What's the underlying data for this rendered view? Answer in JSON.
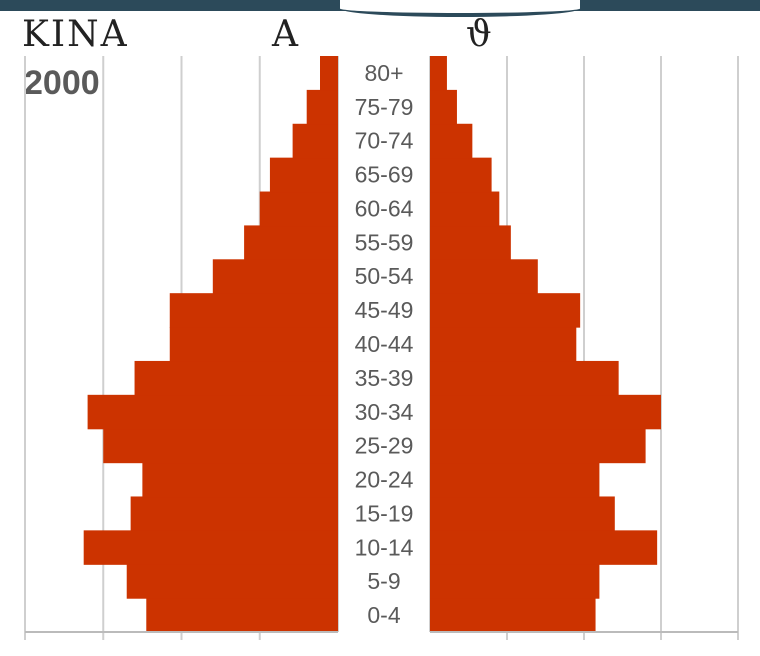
{
  "header": {
    "country": "KINA",
    "left_symbol": "A",
    "right_symbol": "ϑ",
    "year": "2000"
  },
  "colors": {
    "bar": "#cc3300",
    "grid": "#cfcfcf",
    "axis": "#bbbbbb",
    "label": "#5a5a5a",
    "topbar": "#2c4a5a"
  },
  "chart_data": {
    "type": "bar",
    "orientation": "horizontal",
    "layout": "population-pyramid",
    "categories": [
      "0-4",
      "5-9",
      "10-14",
      "15-19",
      "20-24",
      "25-29",
      "30-34",
      "35-39",
      "40-44",
      "45-49",
      "50-54",
      "55-59",
      "60-64",
      "65-69",
      "70-74",
      "75-79",
      "80+"
    ],
    "series": [
      {
        "side": "left",
        "values": [
          24.5,
          27,
          32.5,
          26.5,
          25,
          30,
          32,
          26,
          21.5,
          21.5,
          16,
          12,
          10,
          8.7,
          5.8,
          4,
          2.3
        ]
      },
      {
        "side": "right",
        "values": [
          21.5,
          22,
          29.5,
          24,
          22,
          28,
          30,
          24.5,
          19,
          19.5,
          14,
          10.5,
          9,
          8,
          5.5,
          3.5,
          2.2
        ]
      }
    ],
    "xlim": [
      0,
      40
    ],
    "gridlines": [
      10,
      20,
      30,
      40
    ],
    "grid": true
  }
}
